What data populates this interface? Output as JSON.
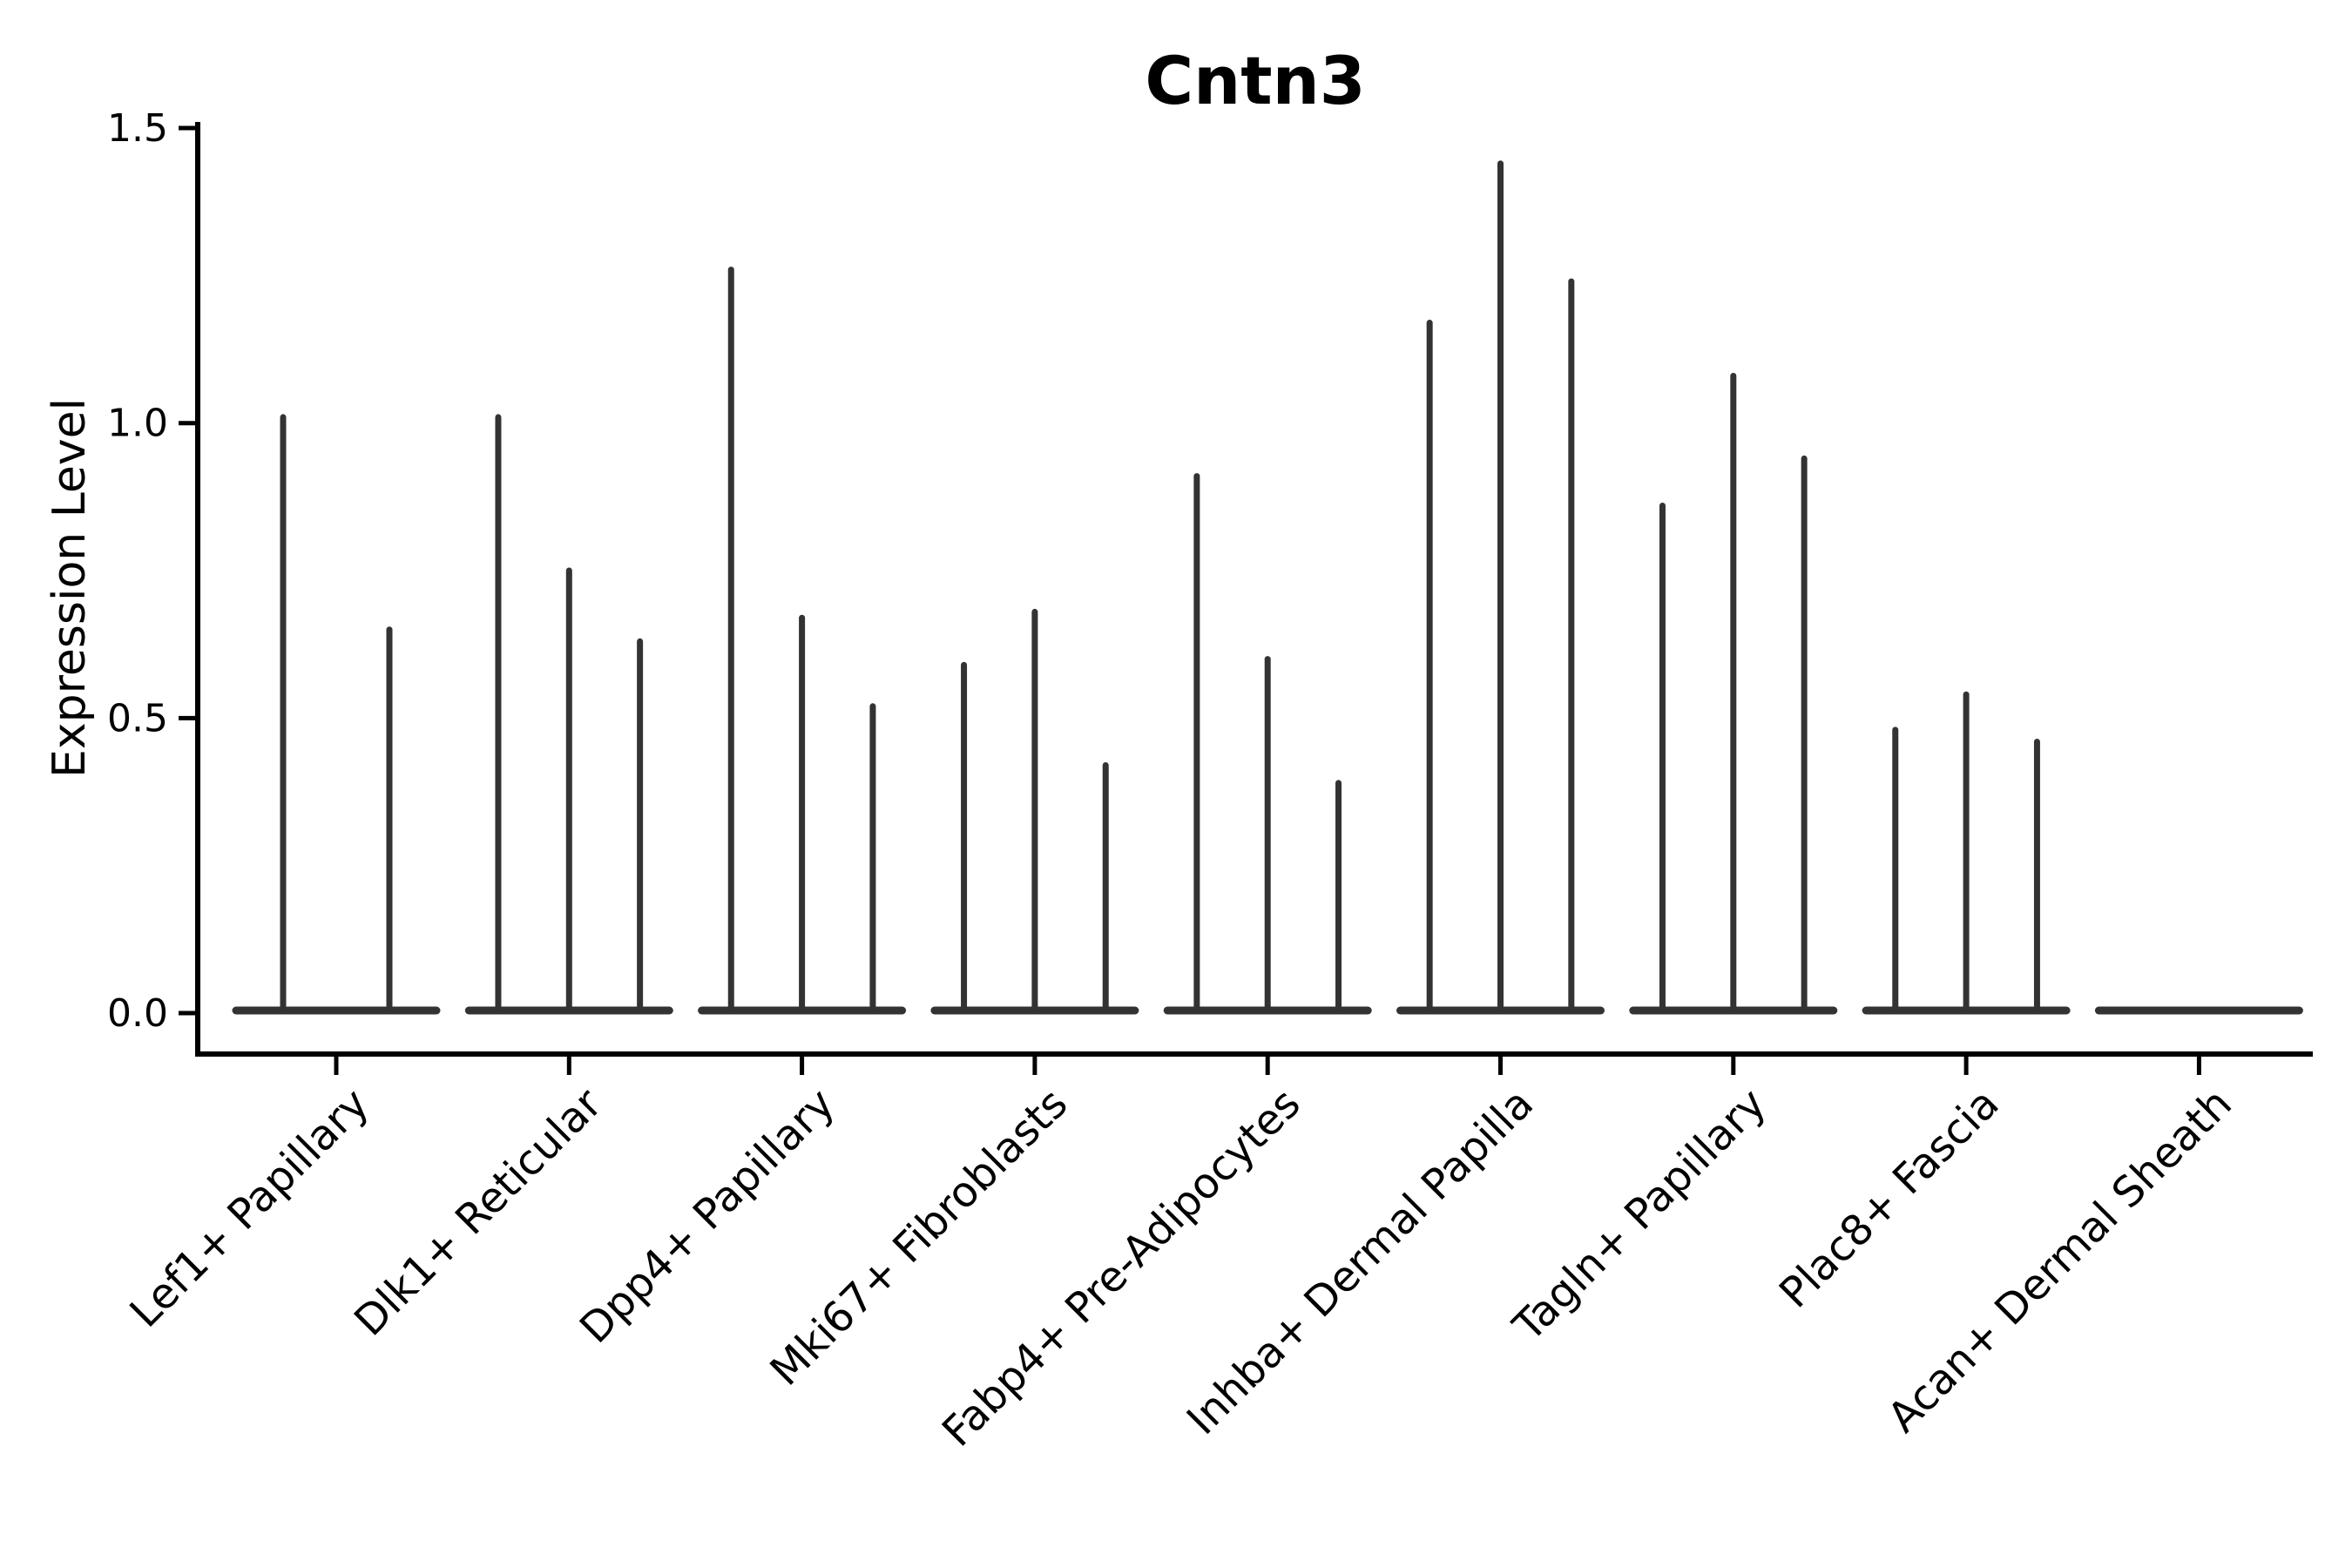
{
  "chart_data": {
    "type": "violin",
    "title": "Cntn3",
    "ylabel": "Expression Level",
    "xlabel": "",
    "ylim": [
      0.0,
      1.5
    ],
    "ytick_labels": [
      "0.0",
      "0.5",
      "1.0",
      "1.5"
    ],
    "yticks": [
      0.0,
      0.5,
      1.0,
      1.5
    ],
    "grid": false,
    "legend": "none",
    "x_tick_rotation": 45,
    "categories": [
      "Lef1+ Papillary",
      "Dlk1+ Reticular",
      "Dpp4+ Papillary",
      "Mki67+ Fibroblasts",
      "Fabp4+ Pre-Adipocytes",
      "Inhba+ Dermal Papilla",
      "Tagln+ Papillary",
      "Plac8+ Fascia",
      "Acan+ Dermal Sheath"
    ],
    "violin_maxima": [
      [
        1.01,
        0.65
      ],
      [
        1.01,
        0.75,
        0.63
      ],
      [
        1.26,
        0.67,
        0.52
      ],
      [
        0.59,
        0.68,
        0.42
      ],
      [
        0.91,
        0.6,
        0.39
      ],
      [
        1.17,
        1.44,
        1.24
      ],
      [
        0.86,
        1.08,
        0.94
      ],
      [
        0.48,
        0.54,
        0.46
      ],
      [
        0.0,
        0.0,
        0.0
      ]
    ],
    "colors": {
      "violin": "#333333",
      "axis": "#000000",
      "text": "#000000",
      "background": "#ffffff"
    }
  }
}
